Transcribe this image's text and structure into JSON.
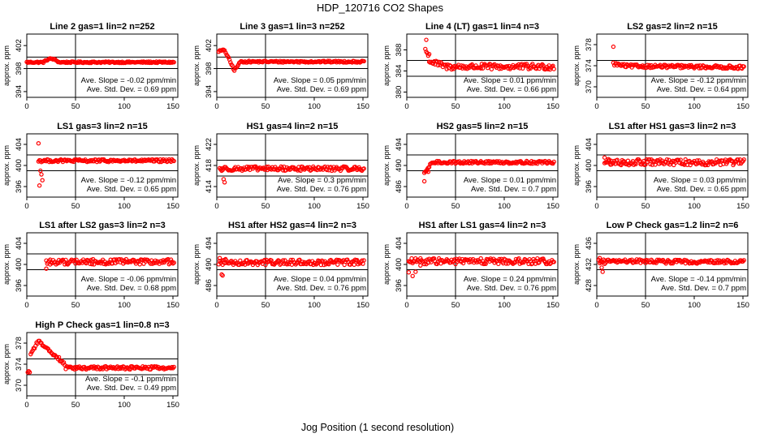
{
  "figure": {
    "title": "HDP_120716  CO2 Shapes",
    "xlabel": "Jog Position (1 second resolution)"
  },
  "chart_data": [
    {
      "type": "scatter",
      "title": "Line 2 gas=1 lin=2 n=252",
      "ylabel": "approx. ppm",
      "xlim": [
        0,
        155
      ],
      "xticks": [
        0,
        50,
        100,
        150
      ],
      "ylim": [
        393,
        404
      ],
      "yticks": [
        394,
        398,
        402
      ],
      "hlines": [
        400,
        398
      ],
      "vline": 50,
      "base": 399.1,
      "trend": "line2",
      "slope_text": "Ave. Slope = -0.02  ppm/min",
      "sd_text": "Ave. Std. Dev. = 0.69  ppm",
      "color": "#ff0000"
    },
    {
      "type": "scatter",
      "title": "Line 3 gas=1 lin=3 n=252",
      "ylabel": "approx. ppm",
      "xlim": [
        0,
        155
      ],
      "xticks": [
        0,
        50,
        100,
        150
      ],
      "ylim": [
        393,
        404
      ],
      "yticks": [
        394,
        398,
        402
      ],
      "hlines": [
        400,
        398
      ],
      "vline": 50,
      "base": 399.2,
      "trend": "line3",
      "slope_text": "Ave. Slope = 0.05  ppm/min",
      "sd_text": "Ave. Std. Dev. = 0.69  ppm",
      "color": "#ff0000"
    },
    {
      "type": "scatter",
      "title": "Line 4 (LT) gas=1 lin=4 n=3",
      "ylabel": "approx. ppm",
      "xlim": [
        0,
        155
      ],
      "xticks": [
        0,
        50,
        100,
        150
      ],
      "ylim": [
        379,
        391
      ],
      "yticks": [
        380,
        384,
        388
      ],
      "hlines": [
        386,
        383
      ],
      "vline": 50,
      "base": 384.8,
      "trend": "line4",
      "slope_text": "Ave. Slope = 0.01  ppm/min",
      "sd_text": "Ave. Std. Dev. = 0.66  ppm",
      "color": "#ff0000"
    },
    {
      "type": "scatter",
      "title": "LS2 gas=2 lin=2 n=15",
      "ylabel": "approx. ppm",
      "xlim": [
        0,
        155
      ],
      "xticks": [
        0,
        50,
        100,
        150
      ],
      "ylim": [
        368,
        380
      ],
      "yticks": [
        370,
        374,
        378
      ],
      "hlines": [
        375,
        372
      ],
      "vline": 50,
      "base": 374.0,
      "trend": "ls2",
      "slope_text": "Ave. Slope = -0.12  ppm/min",
      "sd_text": "Ave. Std. Dev. = 0.64  ppm",
      "color": "#ff0000"
    },
    {
      "type": "scatter",
      "title": "LS1 gas=3 lin=2 n=15",
      "ylabel": "approx. ppm",
      "xlim": [
        0,
        155
      ],
      "xticks": [
        0,
        50,
        100,
        150
      ],
      "ylim": [
        394,
        406
      ],
      "yticks": [
        396,
        400,
        404
      ],
      "hlines": [
        402,
        399
      ],
      "vline": 50,
      "base": 400.9,
      "trend": "ls1",
      "slope_text": "Ave. Slope = -0.12  ppm/min",
      "sd_text": "Ave. Std. Dev. = 0.65  ppm",
      "color": "#ff0000"
    },
    {
      "type": "scatter",
      "title": "HS1 gas=4 lin=2 n=15",
      "ylabel": "approx. ppm",
      "xlim": [
        0,
        155
      ],
      "xticks": [
        0,
        50,
        100,
        150
      ],
      "ylim": [
        412,
        424
      ],
      "yticks": [
        414,
        418,
        422
      ],
      "hlines": [
        419,
        416
      ],
      "vline": 50,
      "base": 417.4,
      "trend": "hs1",
      "slope_text": "Ave. Slope = 0.3  ppm/min",
      "sd_text": "Ave. Std. Dev. = 0.76  ppm",
      "color": "#ff0000"
    },
    {
      "type": "scatter",
      "title": "HS2 gas=5 lin=2 n=15",
      "ylabel": "approx. ppm",
      "xlim": [
        0,
        155
      ],
      "xticks": [
        0,
        50,
        100,
        150
      ],
      "ylim": [
        484,
        496
      ],
      "yticks": [
        486,
        490,
        494
      ],
      "hlines": [
        492,
        489
      ],
      "vline": 50,
      "base": 490.6,
      "trend": "hs2",
      "slope_text": "Ave. Slope = 0.01  ppm/min",
      "sd_text": "Ave. Std. Dev. = 0.7  ppm",
      "color": "#ff0000"
    },
    {
      "type": "scatter",
      "title": "LS1 after HS1 gas=3 lin=2 n=3",
      "ylabel": "approx. ppm",
      "xlim": [
        0,
        155
      ],
      "xticks": [
        0,
        50,
        100,
        150
      ],
      "ylim": [
        394,
        406
      ],
      "yticks": [
        396,
        400,
        404
      ],
      "hlines": [
        402,
        399
      ],
      "vline": 50,
      "base": 400.6,
      "trend": "ls1hs1",
      "slope_text": "Ave. Slope = 0.03  ppm/min",
      "sd_text": "Ave. Std. Dev. = 0.65  ppm",
      "color": "#ff0000"
    },
    {
      "type": "scatter",
      "title": "LS1 after LS2 gas=3 lin=2 n=3",
      "ylabel": "approx. ppm",
      "xlim": [
        0,
        155
      ],
      "xticks": [
        0,
        50,
        100,
        150
      ],
      "ylim": [
        394,
        406
      ],
      "yticks": [
        396,
        400,
        404
      ],
      "hlines": [
        402,
        399
      ],
      "vline": 50,
      "base": 400.5,
      "trend": "ls1ls2",
      "slope_text": "Ave. Slope = -0.06  ppm/min",
      "sd_text": "Ave. Std. Dev. = 0.68  ppm",
      "color": "#ff0000"
    },
    {
      "type": "scatter",
      "title": "HS1 after HS2 gas=4 lin=2 n=3",
      "ylabel": "approx. ppm",
      "xlim": [
        0,
        155
      ],
      "xticks": [
        0,
        50,
        100,
        150
      ],
      "ylim": [
        484,
        496
      ],
      "yticks": [
        486,
        490,
        494
      ],
      "hlines": [
        492,
        489
      ],
      "vline": 50,
      "base": 490.4,
      "trend": "hs1hs2",
      "slope_text": "Ave. Slope = 0.04  ppm/min",
      "sd_text": "Ave. Std. Dev. = 0.76  ppm",
      "color": "#ff0000"
    },
    {
      "type": "scatter",
      "title": "HS1 after LS1 gas=4 lin=2 n=3",
      "ylabel": "approx. ppm",
      "xlim": [
        0,
        155
      ],
      "xticks": [
        0,
        50,
        100,
        150
      ],
      "ylim": [
        394,
        406
      ],
      "yticks": [
        396,
        400,
        404
      ],
      "hlines": [
        402,
        399
      ],
      "vline": 50,
      "base": 400.6,
      "trend": "hs1ls1",
      "slope_text": "Ave. Slope = 0.24  ppm/min",
      "sd_text": "Ave. Std. Dev. = 0.76  ppm",
      "color": "#ff0000"
    },
    {
      "type": "scatter",
      "title": "Low P Check gas=1.2 lin=2 n=6",
      "ylabel": "approx. ppm",
      "xlim": [
        0,
        155
      ],
      "xticks": [
        0,
        50,
        100,
        150
      ],
      "ylim": [
        426,
        438
      ],
      "yticks": [
        428,
        432,
        436
      ],
      "hlines": [
        434,
        431
      ],
      "vline": 50,
      "base": 432.6,
      "trend": "lowp",
      "slope_text": "Ave. Slope = -0.14  ppm/min",
      "sd_text": "Ave. Std. Dev. = 0.7  ppm",
      "color": "#ff0000"
    },
    {
      "type": "scatter",
      "title": "High P Check gas=1 lin=0.8 n=3",
      "ylabel": "approx. ppm",
      "xlim": [
        0,
        155
      ],
      "xticks": [
        0,
        50,
        100,
        150
      ],
      "ylim": [
        368,
        380
      ],
      "yticks": [
        370,
        374,
        378
      ],
      "hlines": [
        375,
        372
      ],
      "vline": 50,
      "base": 373.3,
      "trend": "highp",
      "slope_text": "Ave. Slope = -0.1  ppm/min",
      "sd_text": "Ave. Std. Dev. = 0.49  ppm",
      "color": "#ff0000"
    }
  ]
}
